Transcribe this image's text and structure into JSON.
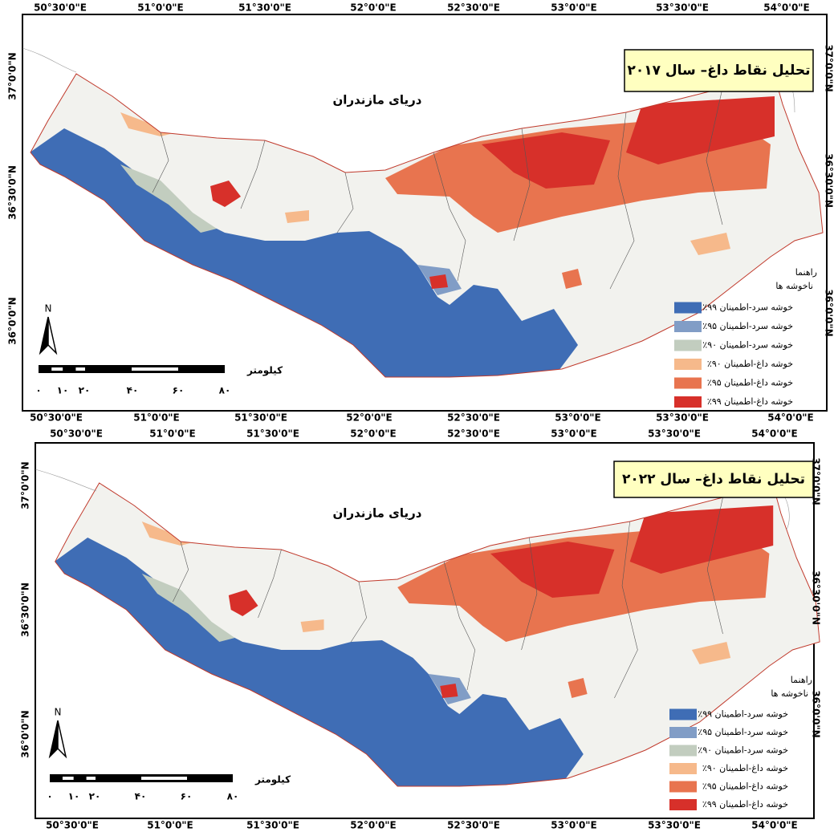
{
  "panels": [
    {
      "title": "تحلیل نقاط داغ– سال ۲۰۱۷",
      "sea_label": "دریای مازندران",
      "lon_top": [
        "50°30'0\"E",
        "51°0'0\"E",
        "51°30'0\"E",
        "52°0'0\"E",
        "52°30'0\"E",
        "53°0'0\"E",
        "53°30'0\"E",
        "54°0'0\"E"
      ],
      "lon_bottom": [
        "50°30'0\"E",
        "51°0'0\"E",
        "51°30'0\"E",
        "52°0'0\"E",
        "52°30'0\"E",
        "53°0'0\"E",
        "53°30'0\"E",
        "54°0'0\"E"
      ],
      "lat_left": [
        "37°0'0\"N",
        "36°30'0\"N",
        "36°0'0\"N"
      ],
      "lat_right": [
        "37°0'0\"N",
        "36°30'0\"N",
        "36°0'0\"N"
      ],
      "legend": {
        "title": "راهنما",
        "items": [
          {
            "label": "ناخوشه ها",
            "color": "#f2f2ee"
          },
          {
            "label": "خوشه سرد-اطمینان ۹۹٪",
            "color": "#3f6db5"
          },
          {
            "label": "خوشه سرد-اطمینان ۹۵٪",
            "color": "#819dc6"
          },
          {
            "label": "خوشه سرد-اطمینان ۹۰٪",
            "color": "#c2cdbf"
          },
          {
            "label": "خوشه داغ-اطمینان ۹۰٪",
            "color": "#f6b98b"
          },
          {
            "label": "خوشه داغ-اطمینان ۹۵٪",
            "color": "#e8744f"
          },
          {
            "label": "خوشه داغ-اطمینان ۹۹٪",
            "color": "#d7302a"
          }
        ]
      },
      "scale": {
        "unit": "کیلومتر",
        "ticks": [
          "۰",
          "۱۰",
          "۲۰",
          "۴۰",
          "۶۰",
          "۸۰"
        ]
      },
      "north": "N"
    },
    {
      "title": "تحلیل نقاط داغ– سال ۲۰۲۲",
      "sea_label": "دریای مازندران",
      "lon_top": [
        "50°30'0\"E",
        "51°0'0\"E",
        "51°30'0\"E",
        "52°0'0\"E",
        "52°30'0\"E",
        "53°0'0\"E",
        "53°30'0\"E",
        "54°0'0\"E"
      ],
      "lon_bottom": [
        "50°30'0\"E",
        "51°0'0\"E",
        "51°30'0\"E",
        "52°0'0\"E",
        "52°30'0\"E",
        "53°0'0\"E",
        "53°30'0\"E",
        "54°0'0\"E"
      ],
      "lat_left": [
        "37°0'0\"N",
        "36°30'0\"N",
        "36°0'0\"N"
      ],
      "lat_right": [
        "37°0'0\"N",
        "36°30'0\"N",
        "36°0'0\"N"
      ],
      "legend": {
        "title": "راهنما",
        "items": [
          {
            "label": "ناخوشه ها",
            "color": "#f2f2ee"
          },
          {
            "label": "خوشه سرد-اطمینان ۹۹٪",
            "color": "#3f6db5"
          },
          {
            "label": "خوشه سرد-اطمینان ۹۵٪",
            "color": "#819dc6"
          },
          {
            "label": "خوشه سرد-اطمینان ۹۰٪",
            "color": "#c2cdbf"
          },
          {
            "label": "خوشه داغ-اطمینان ۹۰٪",
            "color": "#f6b98b"
          },
          {
            "label": "خوشه داغ-اطمینان ۹۵٪",
            "color": "#e8744f"
          },
          {
            "label": "خوشه داغ-اطمینان ۹۹٪",
            "color": "#d7302a"
          }
        ]
      },
      "scale": {
        "unit": "کیلومتر",
        "ticks": [
          "۰",
          "۱۰",
          "۲۰",
          "۴۰",
          "۶۰",
          "۸۰"
        ]
      },
      "north": "N"
    }
  ]
}
